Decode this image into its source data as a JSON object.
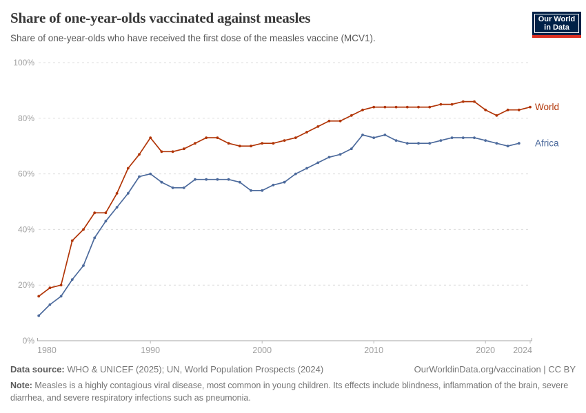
{
  "header": {
    "title": "Share of one-year-olds vaccinated against measles",
    "subtitle": "Share of one-year-olds who have received the first dose of the measles vaccine (MCV1).",
    "logo": {
      "line1": "Our World",
      "line2": "in Data",
      "bg_color": "#002147",
      "accent_color": "#DC3022"
    }
  },
  "chart_data": {
    "type": "line",
    "title": "Share of one-year-olds vaccinated against measles",
    "xlabel": "",
    "ylabel": "",
    "x_range": [
      1980,
      2024
    ],
    "ylim": [
      0,
      100
    ],
    "grid": true,
    "legend_position": "end-of-line-labels",
    "x_ticks": [
      1980,
      1990,
      2000,
      2010,
      2020,
      2024
    ],
    "y_ticks_percent": [
      0,
      20,
      40,
      60,
      80,
      100
    ],
    "y_tick_suffix": "%",
    "colors": {
      "grid": "#dcdcdc",
      "axis": "#a6a6a6",
      "tick_text": "#9e9e9e"
    },
    "series": [
      {
        "name": "World",
        "color": "#B13507",
        "start_year": 1980,
        "values": [
          16,
          19,
          20,
          36,
          40,
          46,
          46,
          53,
          62,
          67,
          73,
          68,
          68,
          69,
          71,
          73,
          73,
          71,
          70,
          70,
          71,
          71,
          72,
          73,
          75,
          77,
          79,
          79,
          81,
          83,
          84,
          84,
          84,
          84,
          84,
          84,
          85,
          85,
          86,
          86,
          83,
          81,
          83,
          83,
          84
        ]
      },
      {
        "name": "Africa",
        "color": "#4C6A9C",
        "start_year": 1980,
        "values": [
          9,
          13,
          16,
          22,
          27,
          37,
          43,
          48,
          53,
          59,
          60,
          57,
          55,
          55,
          58,
          58,
          58,
          58,
          57,
          54,
          54,
          56,
          57,
          60,
          62,
          64,
          66,
          67,
          69,
          74,
          73,
          74,
          72,
          71,
          71,
          71,
          72,
          73,
          73,
          73,
          72,
          71,
          70,
          71
        ]
      }
    ]
  },
  "footer": {
    "datasource_label": "Data source:",
    "datasource_text": " WHO & UNICEF (2025); UN, World Population Prospects (2024)",
    "link": "OurWorldinData.org/vaccination | CC BY",
    "note_label": "Note:",
    "note_text": " Measles is a highly contagious viral disease, most common in young children. Its effects include blindness, inflammation of the brain, severe diarrhea, and severe respiratory infections such as pneumonia."
  }
}
